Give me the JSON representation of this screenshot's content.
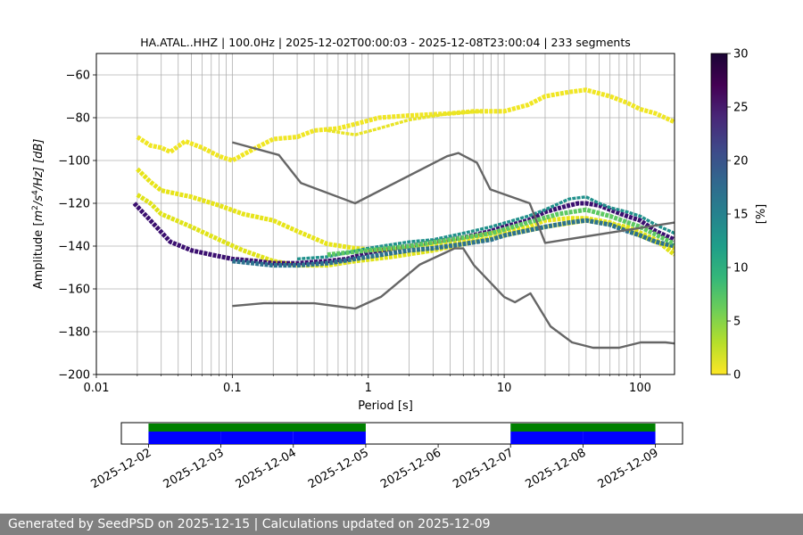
{
  "chart_data": {
    "type": "heatmap",
    "title": "HA.ATAL..HHZ | 100.0Hz | 2025-12-02T00:00:03 - 2025-12-08T23:00:04 | 233 segments",
    "xlabel": "Period [s]",
    "ylabel_parts": {
      "pre": "Amplitude [",
      "m": "m",
      "two": "2",
      "s": "/s",
      "four": "4",
      "hz": "/Hz] [dB]"
    },
    "xscale": "log",
    "xlim": [
      0.01,
      179
    ],
    "ylim": [
      -200,
      -50
    ],
    "grid": true,
    "x_ticks": [
      {
        "value": 0.01,
        "label": "0.01"
      },
      {
        "value": 0.1,
        "label": "0.1"
      },
      {
        "value": 1,
        "label": "1"
      },
      {
        "value": 10,
        "label": "10"
      },
      {
        "value": 100,
        "label": "100"
      }
    ],
    "x_minor_ticks": [
      0.02,
      0.03,
      0.04,
      0.05,
      0.06,
      0.07,
      0.08,
      0.09,
      0.2,
      0.3,
      0.4,
      0.5,
      0.6,
      0.7,
      0.8,
      0.9,
      2,
      3,
      4,
      5,
      6,
      7,
      8,
      9,
      20,
      30,
      40,
      50,
      60,
      70,
      80,
      90
    ],
    "y_ticks": [
      {
        "value": -60,
        "label": "−60"
      },
      {
        "value": -80,
        "label": "−80"
      },
      {
        "value": -100,
        "label": "−100"
      },
      {
        "value": -120,
        "label": "−120"
      },
      {
        "value": -140,
        "label": "−140"
      },
      {
        "value": -160,
        "label": "−160"
      },
      {
        "value": -180,
        "label": "−180"
      },
      {
        "value": -200,
        "label": "−200"
      }
    ],
    "noise_models": [
      {
        "name": "NHNM",
        "color": "#666666",
        "points": [
          [
            0.1,
            -91.5
          ],
          [
            0.22,
            -97.4
          ],
          [
            0.32,
            -110.5
          ],
          [
            0.8,
            -120
          ],
          [
            3.8,
            -98
          ],
          [
            4.6,
            -96.5
          ],
          [
            6.3,
            -101
          ],
          [
            7.9,
            -113.5
          ],
          [
            15.4,
            -120
          ],
          [
            20,
            -138.5
          ],
          [
            354.8,
            -126
          ]
        ]
      },
      {
        "name": "NLNM",
        "color": "#666666",
        "points": [
          [
            0.1,
            -168
          ],
          [
            0.17,
            -166.7
          ],
          [
            0.4,
            -166.7
          ],
          [
            0.8,
            -169.2
          ],
          [
            1.24,
            -163.7
          ],
          [
            2.4,
            -148.6
          ],
          [
            4.3,
            -141.1
          ],
          [
            5,
            -141.1
          ],
          [
            6,
            -149
          ],
          [
            10,
            -163.8
          ],
          [
            12,
            -166.2
          ],
          [
            15.6,
            -162.1
          ],
          [
            21.9,
            -177.5
          ],
          [
            31.6,
            -185
          ],
          [
            45,
            -187.5
          ],
          [
            70,
            -187.5
          ],
          [
            101,
            -185
          ],
          [
            154,
            -185
          ],
          [
            328,
            -187.5
          ]
        ]
      }
    ],
    "psd_bands": [
      {
        "name": "high-amplitude cluster",
        "values": [
          [
            0.02,
            -89
          ],
          [
            0.025,
            -93
          ],
          [
            0.03,
            -94
          ],
          [
            0.035,
            -96
          ],
          [
            0.045,
            -91
          ],
          [
            0.06,
            -94
          ],
          [
            0.08,
            -98
          ],
          [
            0.1,
            -100
          ],
          [
            0.15,
            -94
          ],
          [
            0.2,
            -90
          ],
          [
            0.3,
            -89
          ],
          [
            0.4,
            -86
          ],
          [
            0.6,
            -85
          ],
          [
            0.8,
            -83
          ],
          [
            1.2,
            -80
          ],
          [
            2,
            -79
          ],
          [
            4,
            -78
          ],
          [
            6,
            -77
          ],
          [
            10,
            -77
          ],
          [
            15,
            -74
          ],
          [
            20,
            -70
          ],
          [
            30,
            -68
          ],
          [
            40,
            -67
          ],
          [
            60,
            -70
          ],
          [
            80,
            -73
          ],
          [
            100,
            -76
          ],
          [
            130,
            -78
          ],
          [
            179,
            -82
          ]
        ],
        "thickness": 3,
        "color": "#f0e623"
      },
      {
        "name": "high-amplitude cluster secondary",
        "values": [
          [
            0.5,
            -86
          ],
          [
            0.8,
            -88
          ],
          [
            1.2,
            -85
          ],
          [
            2,
            -81
          ],
          [
            4,
            -78
          ],
          [
            7,
            -77
          ]
        ],
        "thickness": 2,
        "color": "#e8e426"
      },
      {
        "name": "upper transition band",
        "values": [
          [
            0.02,
            -104
          ],
          [
            0.025,
            -110
          ],
          [
            0.03,
            -114
          ],
          [
            0.05,
            -117
          ],
          [
            0.08,
            -121
          ],
          [
            0.12,
            -125
          ],
          [
            0.2,
            -128
          ],
          [
            0.3,
            -133
          ],
          [
            0.5,
            -139
          ],
          [
            0.8,
            -141
          ],
          [
            1.2,
            -142
          ],
          [
            2,
            -141
          ],
          [
            3,
            -139
          ],
          [
            5,
            -137
          ],
          [
            8,
            -134
          ],
          [
            10,
            -133
          ],
          [
            15,
            -131
          ],
          [
            20,
            -128
          ],
          [
            30,
            -127
          ],
          [
            40,
            -127
          ],
          [
            60,
            -129
          ],
          [
            80,
            -132
          ],
          [
            100,
            -135
          ],
          [
            130,
            -138
          ],
          [
            179,
            -141
          ]
        ],
        "thickness": 3,
        "color": "#e7e419"
      },
      {
        "name": "lower transition band",
        "values": [
          [
            0.02,
            -116
          ],
          [
            0.025,
            -120
          ],
          [
            0.03,
            -125
          ],
          [
            0.05,
            -131
          ],
          [
            0.08,
            -137
          ],
          [
            0.12,
            -142
          ],
          [
            0.2,
            -147
          ],
          [
            0.3,
            -149
          ],
          [
            0.5,
            -149
          ],
          [
            0.8,
            -147
          ],
          [
            1.5,
            -145
          ],
          [
            3,
            -142
          ],
          [
            6,
            -138
          ],
          [
            10,
            -135
          ],
          [
            20,
            -131
          ],
          [
            40,
            -128
          ],
          [
            80,
            -131
          ],
          [
            130,
            -137
          ],
          [
            179,
            -144
          ]
        ],
        "thickness": 3,
        "color": "#e0e318"
      },
      {
        "name": "dominant band",
        "values": [
          [
            0.019,
            -120
          ],
          [
            0.025,
            -128
          ],
          [
            0.035,
            -138
          ],
          [
            0.05,
            -142
          ],
          [
            0.07,
            -144
          ],
          [
            0.1,
            -146
          ],
          [
            0.15,
            -147
          ],
          [
            0.2,
            -148
          ],
          [
            0.3,
            -148
          ],
          [
            0.5,
            -147
          ],
          [
            0.7,
            -146
          ],
          [
            1,
            -143
          ],
          [
            1.5,
            -141
          ],
          [
            2,
            -140
          ],
          [
            3,
            -138
          ],
          [
            5,
            -136
          ],
          [
            8,
            -133
          ],
          [
            10,
            -131
          ],
          [
            15,
            -128
          ],
          [
            20,
            -124
          ],
          [
            30,
            -121
          ],
          [
            35,
            -120
          ],
          [
            40,
            -120
          ],
          [
            50,
            -121
          ],
          [
            60,
            -123
          ],
          [
            80,
            -126
          ],
          [
            100,
            -128
          ],
          [
            130,
            -133
          ],
          [
            179,
            -137
          ]
        ],
        "thickness": 3,
        "color": "#3b0f70"
      },
      {
        "name": "dominant band lower edge",
        "values": [
          [
            0.1,
            -147
          ],
          [
            0.2,
            -149
          ],
          [
            0.3,
            -149
          ],
          [
            0.5,
            -148
          ],
          [
            0.8,
            -146
          ],
          [
            1,
            -145
          ],
          [
            2,
            -142
          ],
          [
            3,
            -141
          ],
          [
            5,
            -139
          ],
          [
            8,
            -137
          ],
          [
            10,
            -135
          ],
          [
            20,
            -131
          ],
          [
            30,
            -129
          ],
          [
            40,
            -128
          ],
          [
            60,
            -130
          ],
          [
            80,
            -133
          ],
          [
            100,
            -135
          ],
          [
            130,
            -138
          ],
          [
            179,
            -140
          ]
        ],
        "thickness": 3,
        "color": "#2c728e"
      },
      {
        "name": "dominant band upper edge",
        "values": [
          [
            0.3,
            -146
          ],
          [
            0.5,
            -145
          ],
          [
            1,
            -141
          ],
          [
            2,
            -138
          ],
          [
            3,
            -137
          ],
          [
            5,
            -134
          ],
          [
            8,
            -131
          ],
          [
            15,
            -126
          ],
          [
            20,
            -123
          ],
          [
            30,
            -118
          ],
          [
            40,
            -117
          ],
          [
            50,
            -120
          ],
          [
            60,
            -122
          ],
          [
            80,
            -124
          ],
          [
            100,
            -126
          ],
          [
            130,
            -130
          ],
          [
            179,
            -134
          ]
        ],
        "thickness": 2,
        "color": "#21918c"
      },
      {
        "name": "mid transition band",
        "values": [
          [
            0.5,
            -144
          ],
          [
            1,
            -142
          ],
          [
            2,
            -140
          ],
          [
            4,
            -137
          ],
          [
            8,
            -134
          ],
          [
            15,
            -129
          ],
          [
            25,
            -125
          ],
          [
            40,
            -123
          ],
          [
            60,
            -126
          ],
          [
            100,
            -131
          ],
          [
            179,
            -139
          ]
        ],
        "thickness": 3,
        "color": "#5ec962"
      }
    ],
    "colorbar": {
      "label": "[%]",
      "range": [
        0,
        30
      ],
      "ticks": [
        {
          "value": 0,
          "label": "0"
        },
        {
          "value": 5,
          "label": "5"
        },
        {
          "value": 10,
          "label": "10"
        },
        {
          "value": 15,
          "label": "15"
        },
        {
          "value": 20,
          "label": "20"
        },
        {
          "value": 25,
          "label": "25"
        },
        {
          "value": 30,
          "label": "30"
        }
      ],
      "colors": [
        "#fde725",
        "#b5de2b",
        "#6ece58",
        "#35b779",
        "#1f9e89",
        "#26828e",
        "#31688e",
        "#3e4989",
        "#482878",
        "#440154",
        "#1a0434"
      ]
    },
    "timeline": {
      "range": [
        "2025-12-01T15:00:00",
        "2025-12-09T09:00:00"
      ],
      "tick_labels": [
        {
          "date": "2025-12-02",
          "label": "2025-12-02"
        },
        {
          "date": "2025-12-03",
          "label": "2025-12-03"
        },
        {
          "date": "2025-12-04",
          "label": "2025-12-04"
        },
        {
          "date": "2025-12-05",
          "label": "2025-12-05"
        },
        {
          "date": "2025-12-06",
          "label": "2025-12-06"
        },
        {
          "date": "2025-12-07",
          "label": "2025-12-07"
        },
        {
          "date": "2025-12-08",
          "label": "2025-12-08"
        },
        {
          "date": "2025-12-09",
          "label": "2025-12-09"
        }
      ],
      "data_color": "#0000ff",
      "coverage_color": "#008000",
      "data_segments": [
        [
          "2025-12-02T00:00:00",
          "2025-12-03T00:00:00"
        ],
        [
          "2025-12-03T00:00:00",
          "2025-12-04T00:00:00"
        ],
        [
          "2025-12-04T00:00:00",
          "2025-12-05T00:00:00"
        ],
        [
          "2025-12-07T00:00:00",
          "2025-12-08T00:00:00"
        ],
        [
          "2025-12-08T00:00:00",
          "2025-12-09T00:00:00"
        ]
      ],
      "coverage_segments": [
        [
          "2025-12-02T00:00:00",
          "2025-12-05T00:00:00"
        ],
        [
          "2025-12-07T00:00:00",
          "2025-12-09T00:00:00"
        ]
      ]
    }
  },
  "footer": {
    "text": "Generated by SeedPSD on 2025-12-15 | Calculations updated on 2025-12-09"
  },
  "colors": {
    "grid": "#b0b0b0",
    "noise_model": "#666666",
    "footer_bg": "#808080"
  }
}
